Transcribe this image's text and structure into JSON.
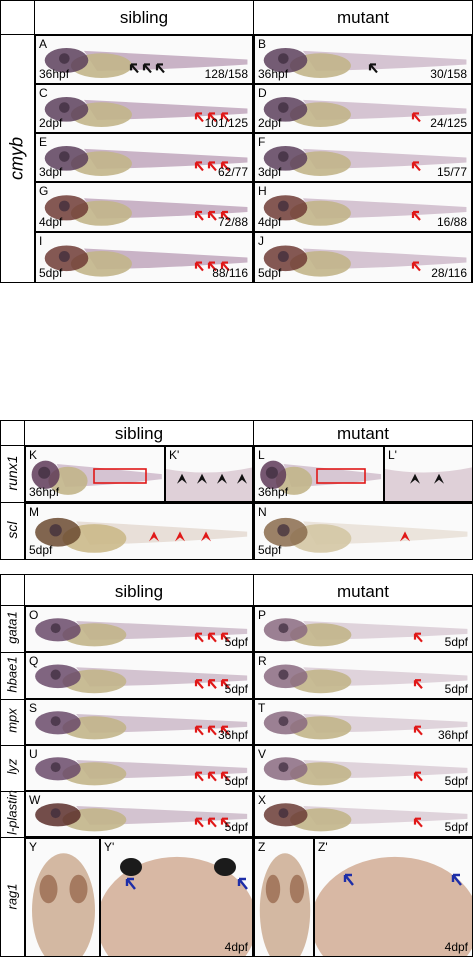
{
  "colors": {
    "red_arrow": "#e01818",
    "black_arrow": "#111111",
    "blue_arrow": "#1e2ea8",
    "red_box": "#e01818"
  },
  "section1": {
    "gene": "cmyb",
    "col_left": "sibling",
    "col_right": "mutant",
    "panels": [
      {
        "label": "A",
        "stage": "36hpf",
        "count": "128/158",
        "arrows": "black",
        "n": 3
      },
      {
        "label": "B",
        "stage": "36hpf",
        "count": "30/158",
        "arrows": "black",
        "n": 1
      },
      {
        "label": "C",
        "stage": "2dpf",
        "count": "101/125",
        "arrows": "red",
        "n": 3
      },
      {
        "label": "D",
        "stage": "2dpf",
        "count": "24/125",
        "arrows": "red",
        "n": 1
      },
      {
        "label": "E",
        "stage": "3dpf",
        "count": "62/77",
        "arrows": "red",
        "n": 3
      },
      {
        "label": "F",
        "stage": "3dpf",
        "count": "15/77",
        "arrows": "red",
        "n": 1
      },
      {
        "label": "G",
        "stage": "4dpf",
        "count": "72/88",
        "arrows": "red",
        "n": 3
      },
      {
        "label": "H",
        "stage": "4dpf",
        "count": "16/88",
        "arrows": "red",
        "n": 1
      },
      {
        "label": "I",
        "stage": "5dpf",
        "count": "88/116",
        "arrows": "red",
        "n": 3
      },
      {
        "label": "J",
        "stage": "5dpf",
        "count": "28/116",
        "arrows": "red",
        "n": 1
      }
    ]
  },
  "section2": {
    "col_left": "sibling",
    "col_right": "mutant",
    "row1_gene": "runx1",
    "row2_gene": "scl",
    "panels": {
      "K": {
        "label": "K",
        "stage": "36hpf"
      },
      "Kp": {
        "label": "K'"
      },
      "L": {
        "label": "L",
        "stage": "36hpf"
      },
      "Lp": {
        "label": "L'"
      },
      "M": {
        "label": "M",
        "stage": "5dpf"
      },
      "N": {
        "label": "N",
        "stage": "5dpf"
      }
    }
  },
  "section3": {
    "col_left": "sibling",
    "col_right": "mutant",
    "rows": [
      {
        "gene": "gata1",
        "left": {
          "label": "O",
          "stage": "5dpf"
        },
        "right": {
          "label": "P",
          "stage": "5dpf"
        }
      },
      {
        "gene": "hbae1",
        "left": {
          "label": "Q",
          "stage": "5dpf"
        },
        "right": {
          "label": "R",
          "stage": "5dpf"
        }
      },
      {
        "gene": "mpx",
        "left": {
          "label": "S",
          "stage": "36hpf"
        },
        "right": {
          "label": "T",
          "stage": "36hpf"
        }
      },
      {
        "gene": "lyz",
        "left": {
          "label": "U",
          "stage": "5dpf"
        },
        "right": {
          "label": "V",
          "stage": "5dpf"
        }
      },
      {
        "gene": "l-plastin",
        "left": {
          "label": "W",
          "stage": "5dpf"
        },
        "right": {
          "label": "X",
          "stage": "5dpf"
        }
      }
    ],
    "rag1": {
      "gene": "rag1",
      "Y": {
        "label": "Y"
      },
      "Yp": {
        "label": "Y'",
        "stage": "4dpf"
      },
      "Z": {
        "label": "Z"
      },
      "Zp": {
        "label": "Z'",
        "stage": "4dpf"
      }
    }
  }
}
